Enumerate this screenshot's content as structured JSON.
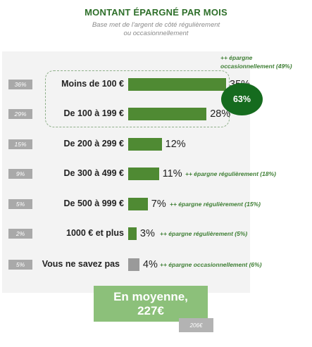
{
  "chart_data": {
    "type": "bar",
    "orientation": "horizontal",
    "title": "MONTANT ÉPARGNÉ PAR MOIS",
    "subtitle_line1": "Base met de l'argent de côté régulièrement",
    "subtitle_line2": "ou occasionnellement",
    "categories": [
      "Moins de 100 €",
      "De 100 à 199 €",
      "De 200 à 299 €",
      "De 300 à 499 €",
      "De 500 à 999 €",
      "1000 € et plus",
      "Vous ne savez pas"
    ],
    "values": [
      35,
      28,
      12,
      11,
      7,
      3,
      4
    ],
    "value_labels": [
      "35%",
      "28%",
      "12%",
      "11%",
      "7%",
      "3%",
      "4%"
    ],
    "previous_labels": [
      "36%",
      "29%",
      "15%",
      "9%",
      "5%",
      "2%",
      "5%"
    ],
    "bar_colors": [
      "#4f8a33",
      "#4f8a33",
      "#4f8a33",
      "#4f8a33",
      "#4f8a33",
      "#4f8a33",
      "#9a9a9a"
    ],
    "notes": [
      "",
      "",
      "",
      "++ épargne régulièrement (18%)",
      "++ épargne régulièrement (15%)",
      "++ épargne régulièrement (5%)",
      "++ épargne occasionnellement (6%)"
    ],
    "top_note_line1": "++ épargne",
    "top_note_line2": "occasionnellement (49%)",
    "group_total": "63%",
    "average_line1": "En moyenne,",
    "average_line2": "227€",
    "previous_average": "206€"
  }
}
